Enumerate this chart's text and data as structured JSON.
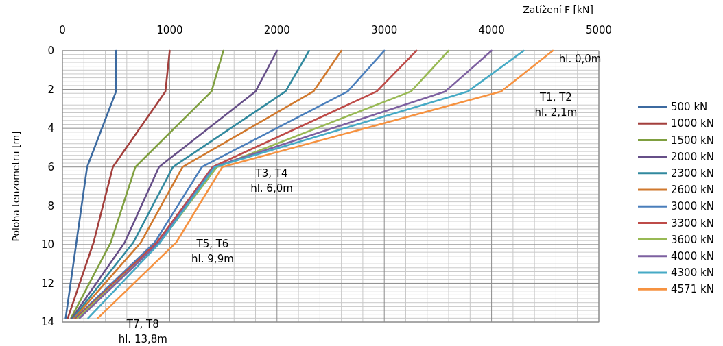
{
  "chart_data": {
    "type": "line",
    "xlabel": "Zatížení  F [kN]",
    "ylabel": "Poloha tenzometru [m]",
    "xlim": [
      0,
      5000
    ],
    "xticks": [
      0,
      1000,
      2000,
      3000,
      4000,
      5000
    ],
    "ylim": [
      14,
      0
    ],
    "yticks": [
      0,
      2,
      4,
      6,
      8,
      10,
      12,
      14
    ],
    "grid": true,
    "legend": "right",
    "line_style": "solid",
    "series": [
      {
        "name": "500 kN",
        "color": "#3c6aa0",
        "x": [
          500,
          500,
          230,
          130,
          30
        ],
        "values": [
          0,
          2.1,
          6,
          9.9,
          13.8
        ]
      },
      {
        "name": "1000 kN",
        "color": "#a33f3c",
        "x": [
          1000,
          960,
          470,
          290,
          50
        ],
        "values": [
          0,
          2.1,
          6,
          9.9,
          13.8
        ]
      },
      {
        "name": "1500 kN",
        "color": "#7f9f3f",
        "x": [
          1500,
          1390,
          680,
          450,
          80
        ],
        "values": [
          0,
          2.1,
          6,
          9.9,
          13.8
        ]
      },
      {
        "name": "2000 kN",
        "color": "#664f88",
        "x": [
          2000,
          1800,
          900,
          580,
          90
        ],
        "values": [
          0,
          2.1,
          6,
          9.9,
          13.8
        ]
      },
      {
        "name": "2300 kN",
        "color": "#31899e",
        "x": [
          2300,
          2080,
          1030,
          660,
          100
        ],
        "values": [
          0,
          2.1,
          6,
          9.9,
          13.8
        ]
      },
      {
        "name": "2600 kN",
        "color": "#d0782d",
        "x": [
          2600,
          2340,
          1120,
          730,
          110
        ],
        "values": [
          0,
          2.1,
          6,
          9.9,
          13.8
        ]
      },
      {
        "name": "3000 kN",
        "color": "#4a7ebb",
        "x": [
          3000,
          2660,
          1300,
          860,
          120
        ],
        "values": [
          0,
          2.1,
          6,
          9.9,
          13.8
        ]
      },
      {
        "name": "3300 kN",
        "color": "#be4b48",
        "x": [
          3300,
          2930,
          1400,
          880,
          130
        ],
        "values": [
          0,
          2.1,
          6,
          9.9,
          13.8
        ]
      },
      {
        "name": "3600 kN",
        "color": "#98b954",
        "x": [
          3600,
          3250,
          1440,
          905,
          140
        ],
        "values": [
          0,
          2.1,
          6,
          9.9,
          13.8
        ]
      },
      {
        "name": "4000 kN",
        "color": "#7d60a0",
        "x": [
          4000,
          3570,
          1410,
          900,
          160
        ],
        "values": [
          0,
          2.1,
          6,
          9.9,
          13.8
        ]
      },
      {
        "name": "4300 kN",
        "color": "#46aac5",
        "x": [
          4300,
          3780,
          1420,
          910,
          240
        ],
        "values": [
          0,
          2.1,
          6,
          9.9,
          13.8
        ]
      },
      {
        "name": "4571 kN",
        "color": "#f69240",
        "x": [
          4571,
          4090,
          1490,
          1060,
          330
        ],
        "values": [
          0,
          2.1,
          6,
          9.9,
          13.8
        ]
      }
    ],
    "annotations": [
      "hl. 0,0m",
      "T1, T2\nhl. 2,1m",
      "T3, T4\nhl. 6,0m",
      "T5, T6\nhl. 9,9m",
      "T7, T8\nhl. 13,8m"
    ]
  }
}
